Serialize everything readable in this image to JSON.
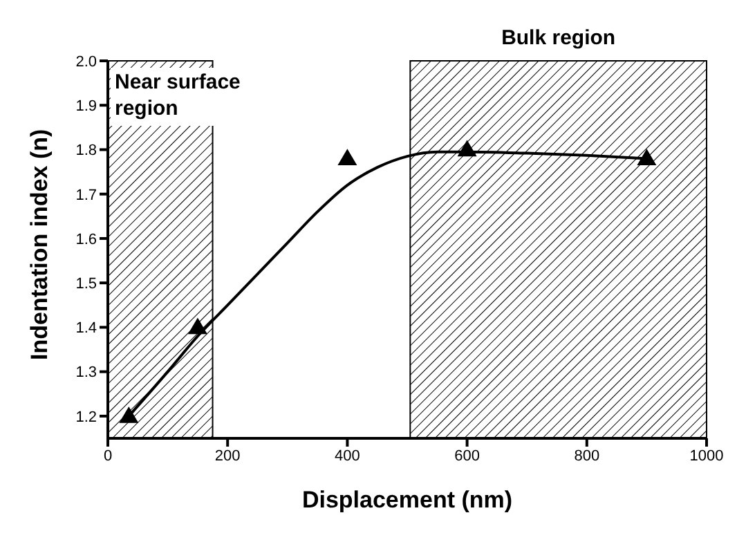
{
  "chart_data": {
    "type": "scatter",
    "xlabel": "Displacement (nm)",
    "ylabel": "Indentation index (n)",
    "xlim": [
      0,
      1000
    ],
    "xticks": [
      0,
      200,
      400,
      600,
      800,
      1000
    ],
    "ylim": [
      1.15,
      2.0
    ],
    "yticks": [
      {
        "value": 1.2,
        "label": "1.2"
      },
      {
        "value": 1.3,
        "label": "1.3"
      },
      {
        "value": 1.4,
        "label": "1.4"
      },
      {
        "value": 1.5,
        "label": "1.5"
      },
      {
        "value": 1.6,
        "label": "1.6"
      },
      {
        "value": 1.7,
        "label": "1.7"
      },
      {
        "value": 1.8,
        "label": "1.8"
      },
      {
        "value": 1.9,
        "label": "1.9"
      },
      {
        "value": 2.0,
        "label": "2.0"
      }
    ],
    "grid": false,
    "legend": false,
    "marker": "triangle",
    "series": [
      {
        "color": "#000000",
        "x": [
          35,
          150,
          400,
          600,
          900
        ],
        "values": [
          1.2,
          1.4,
          1.78,
          1.8,
          1.78
        ]
      },
      {
        "type": "line",
        "color": "#000000",
        "marker": "none",
        "line_style": "solid",
        "x": [
          35,
          100,
          150,
          200,
          250,
          300,
          350,
          400,
          450,
          500,
          550,
          600,
          700,
          800,
          900
        ],
        "values": [
          1.2,
          1.3,
          1.38,
          1.45,
          1.52,
          1.59,
          1.66,
          1.72,
          1.76,
          1.785,
          1.795,
          1.795,
          1.792,
          1.787,
          1.78
        ]
      }
    ],
    "bands": [
      {
        "axis": "x",
        "from": 0,
        "to": 175,
        "label": "Near surface region",
        "color": "#000000"
      },
      {
        "axis": "x",
        "from": 505,
        "to": 1000,
        "label": "Bulk region",
        "color": "#000000"
      }
    ]
  }
}
